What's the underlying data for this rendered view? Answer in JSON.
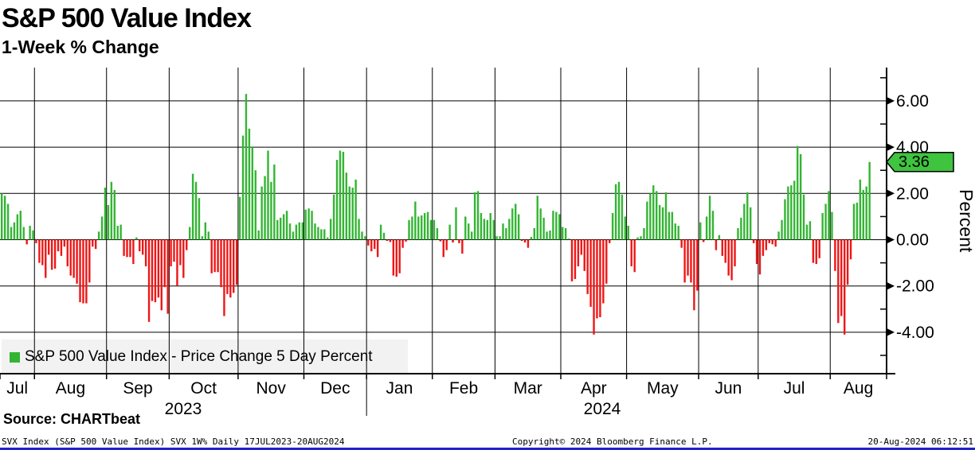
{
  "title": "S&P 500 Value Index",
  "subtitle": "1-Week % Change",
  "y_axis": {
    "label": "Percent",
    "tick_labels": [
      "6.00",
      "4.00",
      "2.00",
      "0.00",
      "-2.00",
      "-4.00"
    ],
    "last_value_tag": "3.36",
    "tag_color": "#3ec43e"
  },
  "legend": {
    "label": "S&P 500 Value Index - Price Change 5 Day Percent",
    "swatch_color": "#33b533"
  },
  "x_axis": {
    "month_labels": [
      "Jul",
      "Aug",
      "Sep",
      "Oct",
      "Nov",
      "Dec",
      "Jan",
      "Feb",
      "Mar",
      "Apr",
      "May",
      "Jun",
      "Jul",
      "Aug"
    ],
    "year_labels": [
      "2023",
      "2024"
    ]
  },
  "footer": {
    "source": "Source: CHARTbeat",
    "meta": "SVX Index (S&P 500 Value Index) SVX 1W%  Daily 17JUL2023-20AUG2024",
    "copyright": "Copyright© 2024 Bloomberg Finance L.P.",
    "timestamp": "20-Aug-2024 06:12:51"
  },
  "chart_data": {
    "type": "bar",
    "title": "S&P 500 Value Index",
    "subtitle": "1-Week % Change",
    "ylabel": "Percent",
    "ylim": [
      -5.8,
      7.4
    ],
    "ytick_values": [
      6,
      4,
      2,
      0,
      -2,
      -4
    ],
    "minor_ytick_values": [
      7,
      5,
      3,
      1,
      -1,
      -3,
      -5
    ],
    "grid": true,
    "legend_position": "bottom-left",
    "series_name": "S&P 500 Value Index - Price Change 5 Day Percent",
    "positive_color": "#33b533",
    "negative_color": "#ee1616",
    "last_value": 3.36,
    "date_range": "17JUL2023-20AUG2024",
    "months": [
      {
        "label": "Jul",
        "year": "2023",
        "count": 11
      },
      {
        "label": "Aug",
        "count": 23
      },
      {
        "label": "Sep",
        "count": 20
      },
      {
        "label": "Oct",
        "count": 22
      },
      {
        "label": "Nov",
        "count": 21
      },
      {
        "label": "Dec",
        "count": 20
      },
      {
        "label": "Jan",
        "year": "2024",
        "count": 21
      },
      {
        "label": "Feb",
        "count": 20
      },
      {
        "label": "Mar",
        "count": 21
      },
      {
        "label": "Apr",
        "count": 21
      },
      {
        "label": "May",
        "count": 23
      },
      {
        "label": "Jun",
        "count": 19
      },
      {
        "label": "Jul",
        "count": 23
      },
      {
        "label": "Aug",
        "count": 13
      }
    ],
    "values": [
      2.0,
      1.9,
      1.55,
      0.55,
      0.75,
      1.1,
      1.25,
      0.55,
      -0.2,
      0.6,
      0.4,
      -0.15,
      -1.0,
      -1.1,
      -1.65,
      -0.65,
      -1.3,
      -1.25,
      -0.5,
      -0.7,
      -0.3,
      -1.15,
      -1.55,
      -1.65,
      -1.9,
      -2.7,
      -2.75,
      -2.75,
      -1.85,
      -0.3,
      -0.4,
      0.35,
      1.0,
      2.25,
      1.5,
      2.5,
      2.15,
      0.6,
      0.65,
      -0.7,
      -0.75,
      -0.75,
      -1.05,
      0.1,
      -0.5,
      -0.65,
      -1.15,
      -3.55,
      -2.65,
      -2.7,
      -2.5,
      -3.05,
      -2.05,
      -3.2,
      -1.15,
      -0.95,
      -2.0,
      -1.1,
      -1.65,
      -0.45,
      0.55,
      2.85,
      2.5,
      1.8,
      0.15,
      0.75,
      0.35,
      -1.45,
      -1.4,
      -1.4,
      -2.05,
      -3.3,
      -2.35,
      -2.5,
      -2.3,
      -1.95,
      1.85,
      4.5,
      6.3,
      4.8,
      4.0,
      3.0,
      0.4,
      2.3,
      2.75,
      3.85,
      2.5,
      3.25,
      0.85,
      0.95,
      1.1,
      1.25,
      0.7,
      0.35,
      0.65,
      0.75,
      0.75,
      1.3,
      1.35,
      1.25,
      0.7,
      0.55,
      0.45,
      0.45,
      0.1,
      0.9,
      1.95,
      3.45,
      3.85,
      3.8,
      2.9,
      2.3,
      2.25,
      2.6,
      0.9,
      0.35,
      0.15,
      -0.25,
      -0.5,
      -0.4,
      -0.75,
      0.65,
      0.3,
      -0.05,
      -0.1,
      -1.55,
      -1.6,
      -1.45,
      -0.35,
      -0.08,
      0.85,
      1.0,
      1.65,
      1.0,
      1.05,
      1.15,
      1.2,
      0.85,
      0.85,
      0.5,
      -0.07,
      -0.75,
      -0.45,
      0.65,
      -0.12,
      1.4,
      -0.15,
      -0.6,
      1.0,
      0.7,
      0.35,
      2.05,
      2.1,
      1.15,
      0.9,
      0.85,
      1.15,
      0.85,
      0.15,
      0.15,
      0.7,
      0.5,
      0.9,
      1.35,
      1.55,
      1.1,
      -0.05,
      -0.12,
      -0.35,
      0.12,
      0.5,
      1.9,
      1.35,
      0.95,
      0.35,
      0.4,
      1.25,
      1.2,
      1.1,
      0.55,
      0.5,
      0.05,
      -1.8,
      -1.7,
      -1.15,
      -0.65,
      -1.35,
      -2.35,
      -2.9,
      -4.1,
      -3.4,
      -3.35,
      -2.75,
      -1.9,
      -0.15,
      1.15,
      2.4,
      2.5,
      1.95,
      1.0,
      0.6,
      -1.15,
      -1.4,
      0.1,
      0.15,
      0.5,
      1.65,
      2.0,
      2.35,
      2.1,
      1.5,
      1.4,
      2.05,
      1.2,
      1.2,
      0.7,
      0.6,
      -0.35,
      -1.85,
      -1.55,
      -1.85,
      -3.05,
      -2.2,
      0.75,
      -0.1,
      1.0,
      1.9,
      1.25,
      -0.45,
      0.2,
      -0.7,
      -1.0,
      -1.55,
      -1.75,
      -1.15,
      0.5,
      0.95,
      1.55,
      2.05,
      1.4,
      -0.15,
      -1.05,
      -1.5,
      -0.7,
      -0.45,
      -0.15,
      -0.2,
      -0.3,
      0.35,
      0.85,
      1.75,
      2.3,
      2.35,
      2.55,
      4.05,
      3.7,
      1.95,
      0.65,
      0.8,
      -1.0,
      -1.05,
      -0.8,
      1.15,
      1.55,
      2.1,
      1.2,
      -1.35,
      -3.6,
      -3.3,
      -4.1,
      -1.95,
      -0.85,
      1.55,
      1.6,
      2.6,
      2.15,
      2.3,
      3.36
    ]
  }
}
